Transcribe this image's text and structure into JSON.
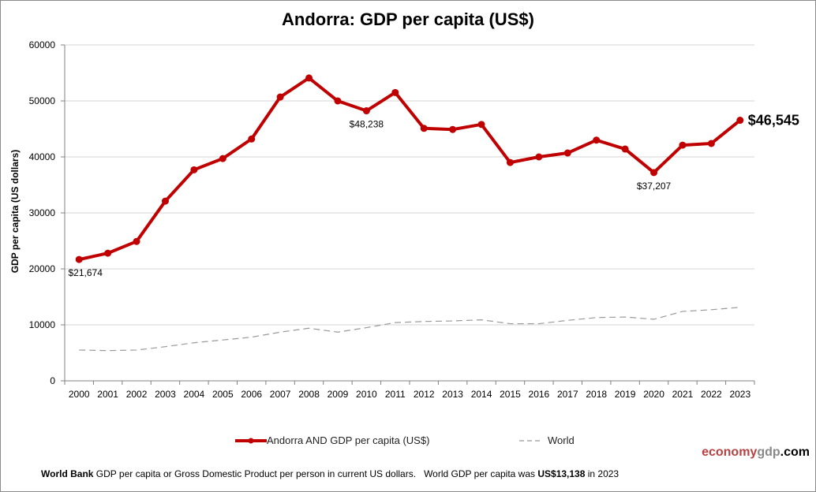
{
  "chart_data": {
    "type": "line",
    "title": "Andorra: GDP per capita (US$)",
    "xlabel": "",
    "ylabel": "GDP per capita (US dollars)",
    "ylim": [
      0,
      60000
    ],
    "yticks": [
      0,
      10000,
      20000,
      30000,
      40000,
      50000,
      60000
    ],
    "ytick_labels": [
      "0",
      "10000",
      "20000",
      "30000",
      "40000",
      "50000",
      "60000"
    ],
    "grid": true,
    "legend_position": "bottom",
    "x": [
      "2000",
      "2001",
      "2002",
      "2003",
      "2004",
      "2005",
      "2006",
      "2007",
      "2008",
      "2009",
      "2010",
      "2011",
      "2012",
      "2013",
      "2014",
      "2015",
      "2016",
      "2017",
      "2018",
      "2019",
      "2020",
      "2021",
      "2022",
      "2023"
    ],
    "series": [
      {
        "name": "Andorra AND GDP per capita (US$)",
        "color": "#c00000",
        "style": "solid-markers",
        "values": [
          21674,
          22800,
          24900,
          32100,
          37700,
          39700,
          43200,
          50700,
          54100,
          50000,
          48238,
          51500,
          45100,
          44900,
          45800,
          39000,
          40000,
          40700,
          43000,
          41400,
          37207,
          42100,
          42400,
          46545
        ]
      },
      {
        "name": "World",
        "color": "#999999",
        "style": "dashed",
        "values": [
          5500,
          5400,
          5500,
          6100,
          6800,
          7300,
          7800,
          8700,
          9400,
          8700,
          9500,
          10400,
          10600,
          10700,
          10900,
          10200,
          10200,
          10800,
          11300,
          11400,
          11000,
          12400,
          12700,
          13138
        ]
      }
    ],
    "annotations": [
      {
        "x": "2000",
        "text": "$21,674",
        "emphasis": false
      },
      {
        "x": "2010",
        "text": "$48,238",
        "emphasis": false
      },
      {
        "x": "2020",
        "text": "$37,207",
        "emphasis": false
      },
      {
        "x": "2023",
        "text": "$46,545",
        "emphasis": true
      }
    ]
  },
  "legend": {
    "andorra": "Andorra AND GDP per capita (US$)",
    "world": "World"
  },
  "brand": {
    "part1": "economy",
    "part2": "gdp",
    "part3": ".com"
  },
  "footnote": {
    "source": "World Bank",
    "text1": " GDP per capita or Gross Domestic Product per person in current US dollars.   World GDP per capita was ",
    "world_value": "US$13,138",
    "text2": " in 2023"
  }
}
